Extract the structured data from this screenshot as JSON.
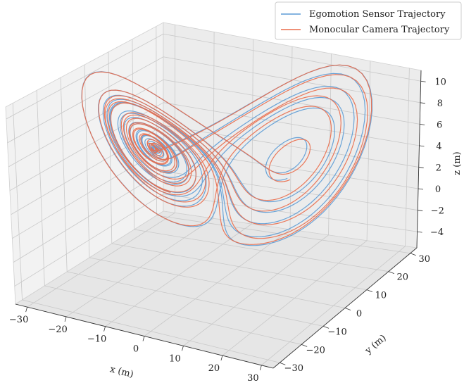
{
  "chart_data": {
    "type": "line",
    "projection": "3d",
    "grid": true,
    "legend_position": "top-right",
    "xlabel": "x (m)",
    "ylabel": "y (m)",
    "zlabel": "z (m)",
    "x_ticks": [
      "−30",
      "−20",
      "−10",
      "0",
      "10",
      "20",
      "30"
    ],
    "y_ticks": [
      "−30",
      "−20",
      "−10",
      "0",
      "10",
      "20",
      "30"
    ],
    "z_ticks": [
      "−4",
      "−2",
      "0",
      "2",
      "4",
      "6",
      "8",
      "10"
    ],
    "xlim": [
      -33,
      33
    ],
    "ylim": [
      -33,
      33
    ],
    "zlim": [
      -5.5,
      11
    ],
    "series": [
      {
        "name": "Egomotion Sensor Trajectory",
        "color": "#5b9bd5"
      },
      {
        "name": "Monocular Camera Trajectory",
        "color": "#ea6b4a"
      }
    ]
  }
}
